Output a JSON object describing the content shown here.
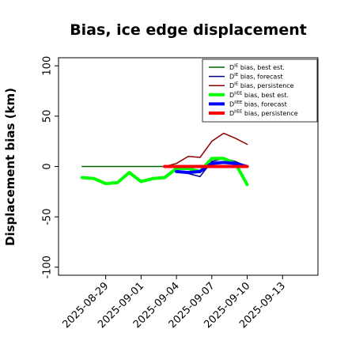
{
  "chart_data": {
    "type": "line",
    "title": "Bias, ice edge displacement",
    "xlabel": "",
    "ylabel": "Displacement bias (km)",
    "xlim": [
      "2025-08-25",
      "2025-09-16"
    ],
    "ylim": [
      -108,
      108
    ],
    "yticks": [
      100,
      50,
      0,
      -50,
      -100
    ],
    "xticks": [
      {
        "date": "2025-08-29",
        "label": "2025-08-29",
        "color": "#000000"
      },
      {
        "date": "2025-09-01",
        "label": "2025-09-01",
        "color": "#000000"
      },
      {
        "date": "2025-09-04",
        "label": "2025-09-04",
        "color": "#228b22"
      },
      {
        "date": "2025-09-07",
        "label": "2025-09-07",
        "color": "#000000"
      },
      {
        "date": "2025-09-10",
        "label": "2025-09-10",
        "color": "#000000"
      },
      {
        "date": "2025-09-13",
        "label": "2025-09-13",
        "color": "#000000"
      }
    ],
    "grid": false,
    "legend_position": "top-right",
    "x": [
      "2025-08-27",
      "2025-08-28",
      "2025-08-29",
      "2025-08-30",
      "2025-08-31",
      "2025-09-01",
      "2025-09-02",
      "2025-09-03",
      "2025-09-04",
      "2025-09-05",
      "2025-09-06",
      "2025-09-07",
      "2025-09-08",
      "2025-09-09",
      "2025-09-10"
    ],
    "series": [
      {
        "name": "D^IE bias, best est.",
        "color": "#006400",
        "width": 1.5,
        "x": [
          "2025-08-27",
          "2025-08-28",
          "2025-08-29",
          "2025-08-30",
          "2025-08-31",
          "2025-09-01",
          "2025-09-02",
          "2025-09-03",
          "2025-09-04",
          "2025-09-05",
          "2025-09-06",
          "2025-09-07",
          "2025-09-08",
          "2025-09-09",
          "2025-09-10"
        ],
        "values": [
          0,
          0,
          0,
          0,
          0,
          0,
          0,
          0,
          0,
          0,
          0,
          0,
          0,
          0,
          0
        ]
      },
      {
        "name": "D^IE bias, forecast",
        "color": "#00008b",
        "width": 1.5,
        "x": [
          "2025-09-04",
          "2025-09-05",
          "2025-09-06",
          "2025-09-07",
          "2025-09-08",
          "2025-09-09",
          "2025-09-10"
        ],
        "values": [
          -5,
          -7,
          -10,
          5,
          8,
          5,
          0
        ]
      },
      {
        "name": "D^IE bias, persistence",
        "color": "#8b0000",
        "width": 1.5,
        "x": [
          "2025-09-03",
          "2025-09-04",
          "2025-09-05",
          "2025-09-06",
          "2025-09-07",
          "2025-09-08",
          "2025-09-09",
          "2025-09-10"
        ],
        "values": [
          0,
          3,
          10,
          9,
          25,
          33,
          28,
          22
        ]
      },
      {
        "name": "D^IIEE bias, best est.",
        "color": "#00ff00",
        "width": 4,
        "x": [
          "2025-08-27",
          "2025-08-28",
          "2025-08-29",
          "2025-08-30",
          "2025-08-31",
          "2025-09-01",
          "2025-09-02",
          "2025-09-03",
          "2025-09-04",
          "2025-09-05",
          "2025-09-06",
          "2025-09-07",
          "2025-09-08",
          "2025-09-09",
          "2025-09-10"
        ],
        "values": [
          -11,
          -12,
          -17,
          -16,
          -6,
          -15,
          -12,
          -11,
          -2,
          -2,
          -5,
          8,
          8,
          3,
          -18
        ]
      },
      {
        "name": "D^IIEE bias, forecast",
        "color": "#0000ff",
        "width": 4,
        "x": [
          "2025-09-04",
          "2025-09-05",
          "2025-09-06",
          "2025-09-07",
          "2025-09-08",
          "2025-09-09",
          "2025-09-10"
        ],
        "values": [
          -5,
          -6,
          -5,
          3,
          4,
          3,
          0
        ]
      },
      {
        "name": "D^IIEE bias, persistence",
        "color": "#ff0000",
        "width": 4,
        "x": [
          "2025-09-03",
          "2025-09-04",
          "2025-09-05",
          "2025-09-06",
          "2025-09-07",
          "2025-09-08",
          "2025-09-09",
          "2025-09-10"
        ],
        "values": [
          0,
          0,
          0,
          0,
          0,
          0,
          0,
          0
        ]
      }
    ],
    "legend": [
      {
        "base": "D",
        "sup": "IE",
        "rest": " bias, best est."
      },
      {
        "base": "D",
        "sup": "IE",
        "rest": " bias, forecast"
      },
      {
        "base": "D",
        "sup": "IE",
        "rest": " bias, persistence"
      },
      {
        "base": "D",
        "sup": "IIEE",
        "rest": " bias, best est."
      },
      {
        "base": "D",
        "sup": "IIEE",
        "rest": " bias, forecast"
      },
      {
        "base": "D",
        "sup": "IIEE",
        "rest": " bias, persistence"
      }
    ]
  }
}
